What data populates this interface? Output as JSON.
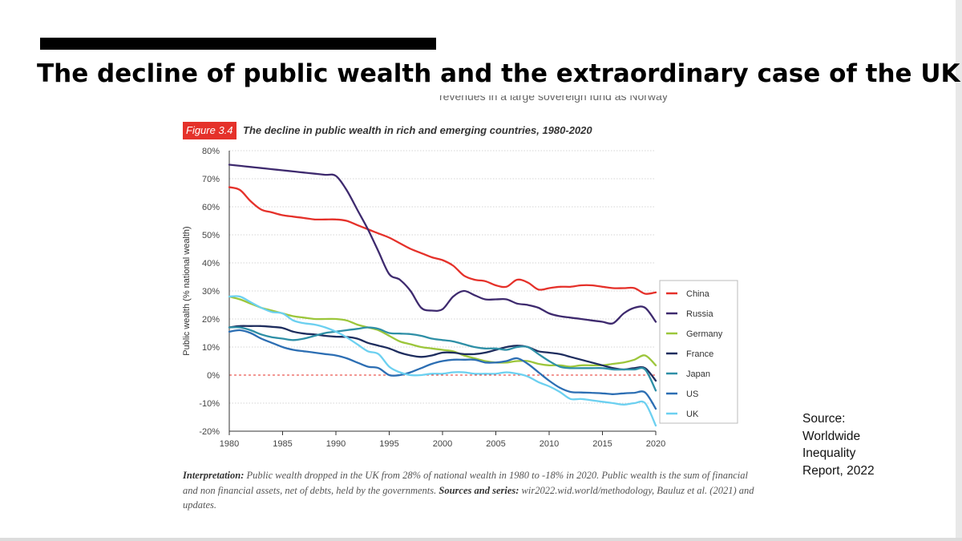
{
  "slide": {
    "title": "The decline of public wealth and the extraordinary case of the UK",
    "cut_off_text": "revenues in a large sovereign fund as Norway",
    "source_lines": [
      "Source:",
      "Worldwide",
      "Inequality",
      "Report, 2022"
    ]
  },
  "figure": {
    "label": "Figure 3.4",
    "title": "The decline in public wealth in rich and emerging countries, 1980-2020"
  },
  "interpretation": {
    "label": "Interpretation:",
    "text": " Public wealth dropped in the UK from 28% of national wealth in 1980 to -18% in 2020. Public wealth is the sum of financial and non financial assets, net of debts, held by the governments. ",
    "sources_label": "Sources and series:",
    "sources_text": " wir2022.wid.world/methodology, Bauluz et al. (2021) and updates."
  },
  "chart_data": {
    "type": "line",
    "title": "The decline in public wealth in rich and emerging countries, 1980-2020",
    "xlabel": "",
    "ylabel": "Public wealth (% national wealth)",
    "xlim": [
      1980,
      2020
    ],
    "ylim": [
      -20,
      80
    ],
    "x_ticks": [
      "1980",
      "1985",
      "1990",
      "1995",
      "2000",
      "2005",
      "2010",
      "2015",
      "2020"
    ],
    "y_ticks": [
      "-20%",
      "-10%",
      "0%",
      "10%",
      "20%",
      "30%",
      "40%",
      "50%",
      "60%",
      "70%",
      "80%"
    ],
    "x": [
      1980,
      1981,
      1982,
      1983,
      1984,
      1985,
      1986,
      1987,
      1988,
      1989,
      1990,
      1991,
      1992,
      1993,
      1994,
      1995,
      1996,
      1997,
      1998,
      1999,
      2000,
      2001,
      2002,
      2003,
      2004,
      2005,
      2006,
      2007,
      2008,
      2009,
      2010,
      2011,
      2012,
      2013,
      2014,
      2015,
      2016,
      2017,
      2018,
      2019,
      2020
    ],
    "zero_line": {
      "value": 0,
      "color": "#e5312a"
    },
    "legend_position": "right",
    "series": [
      {
        "name": "China",
        "color": "#e5312a",
        "values": [
          67,
          66,
          62,
          59,
          58,
          57,
          56.5,
          56,
          55.5,
          55.5,
          55.5,
          55,
          53.5,
          52,
          50.5,
          49,
          47,
          45,
          43.5,
          42,
          41,
          39,
          35.5,
          34,
          33.5,
          32,
          31.5,
          34,
          33,
          30.5,
          31,
          31.5,
          31.5,
          32,
          32,
          31.5,
          31,
          31,
          31,
          29,
          29.5
        ]
      },
      {
        "name": "Russia",
        "color": "#3e2a6e",
        "values": [
          75,
          74.6,
          74.2,
          73.8,
          73.4,
          73,
          72.6,
          72.2,
          71.8,
          71.4,
          71,
          66,
          59,
          52,
          44,
          36,
          34,
          30,
          24,
          23,
          23.5,
          28,
          30,
          28.5,
          27,
          27,
          27,
          25.5,
          25,
          24,
          22,
          21,
          20.5,
          20,
          19.5,
          19,
          18.5,
          22,
          24,
          24,
          19
        ]
      },
      {
        "name": "Germany",
        "color": "#9cc63b",
        "values": [
          28,
          27,
          25.5,
          24,
          23,
          22,
          21,
          20.5,
          20,
          20,
          20,
          19.5,
          18,
          17,
          16,
          14,
          12,
          11,
          10,
          9.5,
          9,
          8.5,
          7,
          6,
          5,
          4.5,
          4.5,
          5,
          5,
          4,
          3.5,
          3.5,
          3,
          3.5,
          3.5,
          3.5,
          4,
          4.5,
          5.5,
          7,
          3.5
        ]
      },
      {
        "name": "France",
        "color": "#1e2d5e",
        "values": [
          17,
          17.5,
          17.5,
          17.5,
          17.2,
          16.8,
          15.5,
          14.8,
          14.5,
          14,
          13.7,
          13.6,
          13,
          11.5,
          10.5,
          9.5,
          8,
          7,
          6.5,
          7,
          8,
          8,
          7.5,
          7.5,
          8,
          9,
          10,
          10.5,
          10,
          8.5,
          8,
          7.5,
          6.5,
          5.5,
          4.5,
          3.5,
          2.5,
          2,
          2.5,
          2.5,
          -2
        ]
      },
      {
        "name": "Japan",
        "color": "#2e8fa6",
        "values": [
          17,
          17,
          16,
          14.5,
          13.5,
          13,
          12.5,
          13,
          14,
          15,
          15.5,
          16,
          16.5,
          17,
          16.5,
          15,
          14.8,
          14.6,
          14,
          13,
          12.5,
          12,
          11,
          10,
          9.5,
          9.5,
          9,
          10,
          10,
          7.5,
          5,
          3,
          2.5,
          2.5,
          2.5,
          2.5,
          2,
          2,
          2,
          2,
          -5.5
        ]
      },
      {
        "name": "US",
        "color": "#2c6eb3",
        "values": [
          15.5,
          16,
          15,
          13,
          11.5,
          10,
          9,
          8.5,
          8,
          7.5,
          7,
          6,
          4.5,
          3,
          2.5,
          0,
          0,
          1,
          2.5,
          4,
          5,
          5.5,
          5.5,
          5.5,
          4.5,
          4.5,
          5,
          6,
          4,
          1,
          -2,
          -4.5,
          -6,
          -6.2,
          -6.3,
          -6.5,
          -6.8,
          -6.5,
          -6.3,
          -6.2,
          -12
        ]
      },
      {
        "name": "UK",
        "color": "#6cd0f0",
        "values": [
          28,
          28,
          26,
          24,
          22.5,
          22,
          19.5,
          18.5,
          18,
          17,
          15.5,
          13.5,
          11,
          8.5,
          7.5,
          3,
          1,
          0,
          0,
          0.5,
          0.5,
          1,
          1,
          0.5,
          0.5,
          0.5,
          1,
          0.5,
          -0.5,
          -2.5,
          -4,
          -6,
          -8.5,
          -8.5,
          -9,
          -9.5,
          -10,
          -10.5,
          -10,
          -10,
          -18
        ]
      }
    ]
  }
}
